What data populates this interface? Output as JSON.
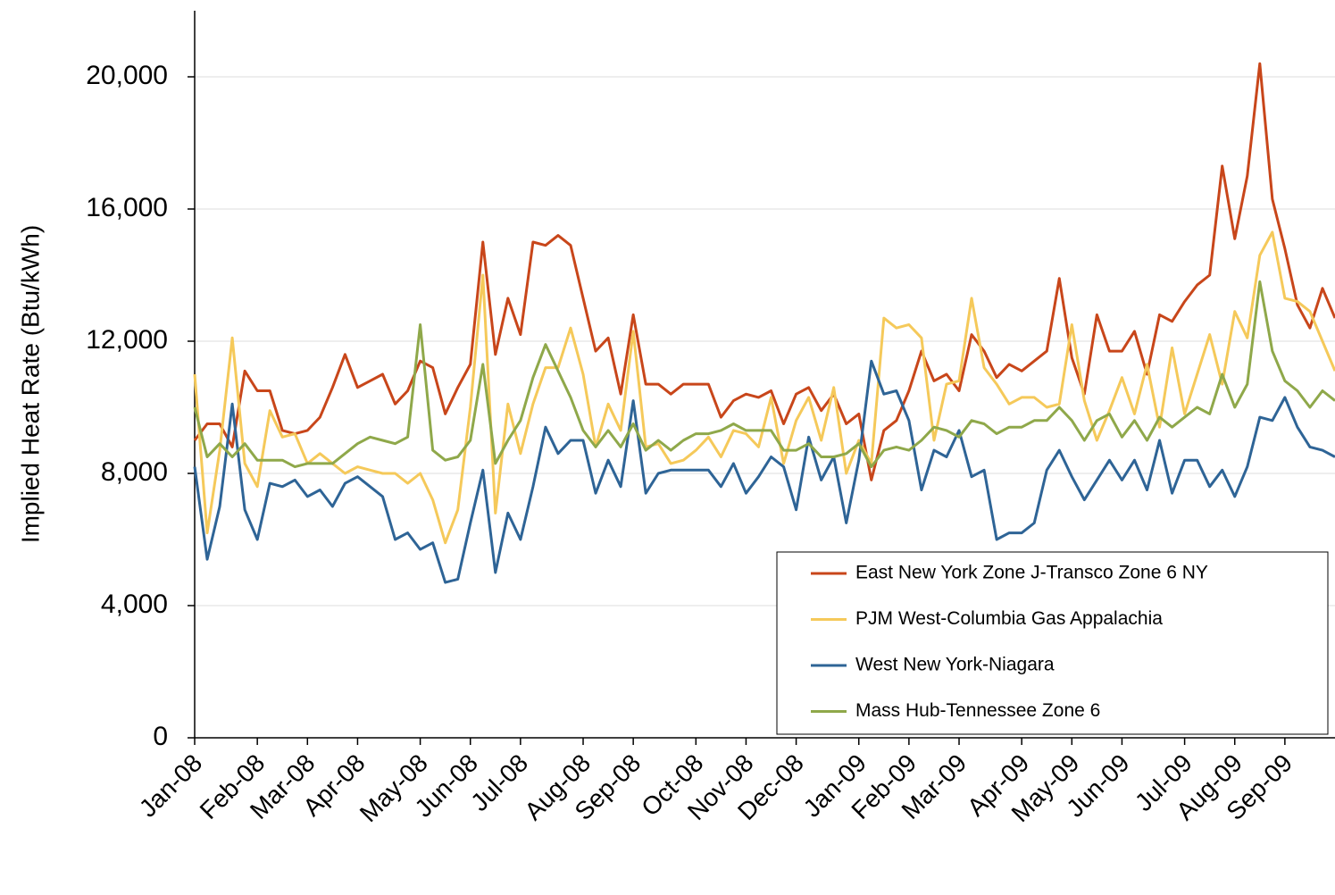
{
  "chart_data": {
    "type": "line",
    "y_label": "Implied Heat Rate (Btu/kWh)",
    "categories": [
      "Jan-08",
      null,
      null,
      null,
      null,
      "Feb-08",
      null,
      null,
      null,
      "Mar-08",
      null,
      null,
      null,
      "Apr-08",
      null,
      null,
      null,
      null,
      "May-08",
      null,
      null,
      null,
      "Jun-08",
      null,
      null,
      null,
      "Jul-08",
      null,
      null,
      null,
      null,
      "Aug-08",
      null,
      null,
      null,
      "Sep-08",
      null,
      null,
      null,
      null,
      "Oct-08",
      null,
      null,
      null,
      "Nov-08",
      null,
      null,
      null,
      "Dec-08",
      null,
      null,
      null,
      null,
      "Jan-09",
      null,
      null,
      null,
      "Feb-09",
      null,
      null,
      null,
      "Mar-09",
      null,
      null,
      null,
      null,
      "Apr-09",
      null,
      null,
      null,
      "May-09",
      null,
      null,
      null,
      "Jun-09",
      null,
      null,
      null,
      null,
      "Jul-09",
      null,
      null,
      null,
      "Aug-09",
      null,
      null,
      null,
      "Sep-09",
      null,
      null,
      null,
      null
    ],
    "series": [
      {
        "name": "East New York Zone J-Transco Zone 6 NY",
        "color": "#c8461a",
        "values": [
          9000,
          9500,
          9500,
          8800,
          11100,
          10500,
          10500,
          9300,
          9200,
          9300,
          9700,
          10600,
          11600,
          10600,
          10800,
          11000,
          10100,
          10500,
          11400,
          11200,
          9800,
          10600,
          11300,
          15000,
          11600,
          13300,
          12200,
          15000,
          14900,
          15200,
          14900,
          13300,
          11700,
          12100,
          10400,
          12800,
          10700,
          10700,
          10400,
          10700,
          10700,
          10700,
          9700,
          10200,
          10400,
          10300,
          10500,
          9500,
          10400,
          10600,
          9900,
          10400,
          9500,
          9800,
          7800,
          9300,
          9600,
          10500,
          11700,
          10800,
          11000,
          10500,
          12200,
          11700,
          10900,
          11300,
          11100,
          11400,
          11700,
          13900,
          11500,
          10400,
          12800,
          11700,
          11700,
          12300,
          11000,
          12800,
          12600,
          13200,
          13700,
          14000,
          17300,
          15100,
          17000,
          20400,
          16300,
          14800,
          13100,
          12400,
          13600,
          12700
        ]
      },
      {
        "name": "PJM West-Columbia Gas Appalachia",
        "color": "#f5c95a",
        "values": [
          11000,
          6200,
          8700,
          12100,
          8300,
          7600,
          9900,
          9100,
          9200,
          8300,
          8600,
          8300,
          8000,
          8200,
          8100,
          8000,
          8000,
          7700,
          8000,
          7200,
          5900,
          6900,
          10000,
          14000,
          6800,
          10100,
          8600,
          10100,
          11200,
          11200,
          12400,
          11000,
          8800,
          10100,
          9300,
          12300,
          8800,
          8900,
          8300,
          8400,
          8700,
          9100,
          8500,
          9300,
          9200,
          8800,
          10300,
          8300,
          9600,
          10300,
          9000,
          10600,
          8000,
          9000,
          8300,
          12700,
          12400,
          12500,
          12100,
          9000,
          10700,
          10800,
          13300,
          11200,
          10700,
          10100,
          10300,
          10300,
          10000,
          10100,
          12500,
          10200,
          9000,
          9900,
          10900,
          9800,
          11300,
          9400,
          11800,
          9800,
          11000,
          12200,
          10700,
          12900,
          12100,
          14600,
          15300,
          13300,
          13200,
          12900,
          12000,
          11100
        ]
      },
      {
        "name": "West New York-Niagara",
        "color": "#2e6496",
        "values": [
          8200,
          5400,
          7000,
          10100,
          6900,
          6000,
          7700,
          7600,
          7800,
          7300,
          7500,
          7000,
          7700,
          7900,
          7600,
          7300,
          6000,
          6200,
          5700,
          5900,
          4700,
          4800,
          6500,
          8100,
          5000,
          6800,
          6000,
          7600,
          9400,
          8600,
          9000,
          9000,
          7400,
          8400,
          7600,
          10200,
          7400,
          8000,
          8100,
          8100,
          8100,
          8100,
          7600,
          8300,
          7400,
          7900,
          8500,
          8200,
          6900,
          9100,
          7800,
          8500,
          6500,
          8400,
          11400,
          10400,
          10500,
          9600,
          7500,
          8700,
          8500,
          9300,
          7900,
          8100,
          6000,
          6200,
          6200,
          6500,
          8100,
          8700,
          7900,
          7200,
          7800,
          8400,
          7800,
          8400,
          7500,
          9000,
          7400,
          8400,
          8400,
          7600,
          8100,
          7300,
          8200,
          9700,
          9600,
          10300,
          9400,
          8800,
          8700,
          8500
        ]
      },
      {
        "name": "Mass Hub-Tennessee Zone 6",
        "color": "#8fa84a",
        "values": [
          10000,
          8500,
          8900,
          8500,
          8900,
          8400,
          8400,
          8400,
          8200,
          8300,
          8300,
          8300,
          8600,
          8900,
          9100,
          9000,
          8900,
          9100,
          12500,
          8700,
          8400,
          8500,
          9000,
          11300,
          8300,
          9000,
          9600,
          10900,
          11900,
          11100,
          10300,
          9300,
          8800,
          9300,
          8800,
          9500,
          8700,
          9000,
          8700,
          9000,
          9200,
          9200,
          9300,
          9500,
          9300,
          9300,
          9300,
          8700,
          8700,
          8900,
          8500,
          8500,
          8600,
          8900,
          8200,
          8700,
          8800,
          8700,
          9000,
          9400,
          9300,
          9100,
          9600,
          9500,
          9200,
          9400,
          9400,
          9600,
          9600,
          10000,
          9600,
          9000,
          9600,
          9800,
          9100,
          9600,
          9000,
          9700,
          9400,
          9700,
          10000,
          9800,
          11000,
          10000,
          10700,
          13800,
          11700,
          10800,
          10500,
          10000,
          10500,
          10200
        ]
      }
    ],
    "ylim": [
      0,
      22000
    ],
    "yticks": [
      0,
      {
        "value": 4000,
        "label": "4,000"
      },
      {
        "value": 8000,
        "label": "8,000"
      },
      {
        "value": 12000,
        "label": "12,000"
      },
      {
        "value": 16000,
        "label": "16,000"
      },
      {
        "value": 20000,
        "label": "20,000"
      }
    ],
    "grid": true,
    "legend": "lower right"
  }
}
